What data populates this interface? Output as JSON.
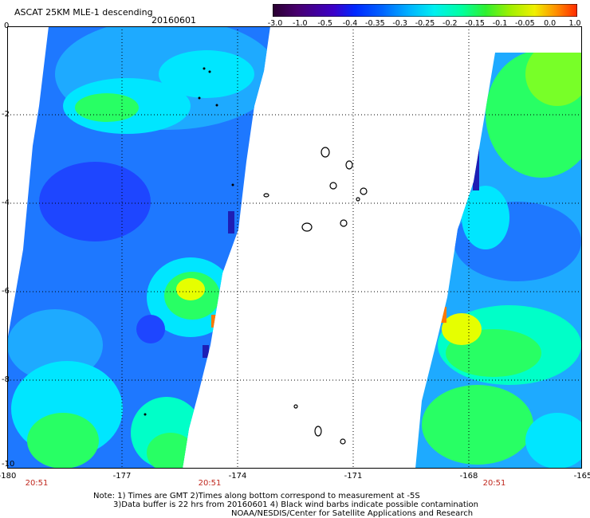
{
  "header": {
    "product": "ASCAT 25KM MLE-1 descending",
    "date": "20160601"
  },
  "colorbar": {
    "labels": [
      "-3.0",
      "-1.0",
      "-0.5",
      "-0.4",
      "-0.35",
      "-0.3",
      "-0.25",
      "-0.2",
      "-0.15",
      "-0.1",
      "-0.05",
      "0.0",
      "1.0"
    ],
    "colors": [
      "#2a0030",
      "#48006e",
      "#3c00c8",
      "#0028ff",
      "#0064ff",
      "#00b4ff",
      "#00f0f0",
      "#00ffa0",
      "#30f030",
      "#a0f000",
      "#f0f000",
      "#ff9000",
      "#ff2800"
    ]
  },
  "map": {
    "x_ticks": [
      "-180",
      "-177",
      "-174",
      "-171",
      "-168",
      "-165"
    ],
    "y_ticks": [
      "0",
      "-2",
      "-4",
      "-6",
      "-8",
      "-10"
    ],
    "x_range": [
      -180,
      -165
    ],
    "y_range": [
      -10,
      0
    ],
    "grid": "dotted",
    "times": [
      "20:51",
      "20:51",
      "20:51"
    ],
    "colors": {
      "deep_blue": "#1e46ff",
      "blue": "#1e78ff",
      "light_blue": "#1eaaff",
      "cyan": "#00e6ff",
      "aqua": "#00ffc8",
      "green": "#28ff64",
      "lime": "#78ff28",
      "yellow": "#e6ff00",
      "orange": "#ff7800",
      "navy": "#1e1eb4"
    }
  },
  "notes": {
    "line1": "Note: 1) Times are GMT 2)Times along bottom correspond to measurement at -5S",
    "line2": "3)Data buffer is 22 hrs from 20160601 4) Black wind barbs indicate possible contamination",
    "line3": "NOAA/NESDIS/Center for Satellite Applications and Research"
  }
}
